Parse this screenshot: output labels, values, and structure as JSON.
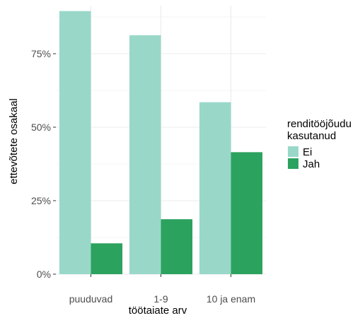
{
  "chart_data": {
    "type": "bar",
    "barmode": "grouped",
    "categories": [
      "puuduvad",
      "1-9",
      "10 ja enam"
    ],
    "series": [
      {
        "name": "Ei",
        "values": [
          0.895,
          0.813,
          0.585
        ],
        "color": "#99d8c9"
      },
      {
        "name": "Jah",
        "values": [
          0.105,
          0.187,
          0.415
        ],
        "color": "#2ca25f"
      }
    ],
    "xlabel": "töötaiate arv",
    "ylabel": "ettevõtete osakaal",
    "ylim": [
      0,
      0.9
    ],
    "yticks": [
      0,
      0.25,
      0.5,
      0.75
    ],
    "ytick_labels": [
      "0%",
      "25%",
      "50%",
      "75%"
    ],
    "grid": true,
    "legend": {
      "title_line1": "renditööjõudu",
      "title_line2": "kasutanud",
      "placement": "right"
    }
  }
}
